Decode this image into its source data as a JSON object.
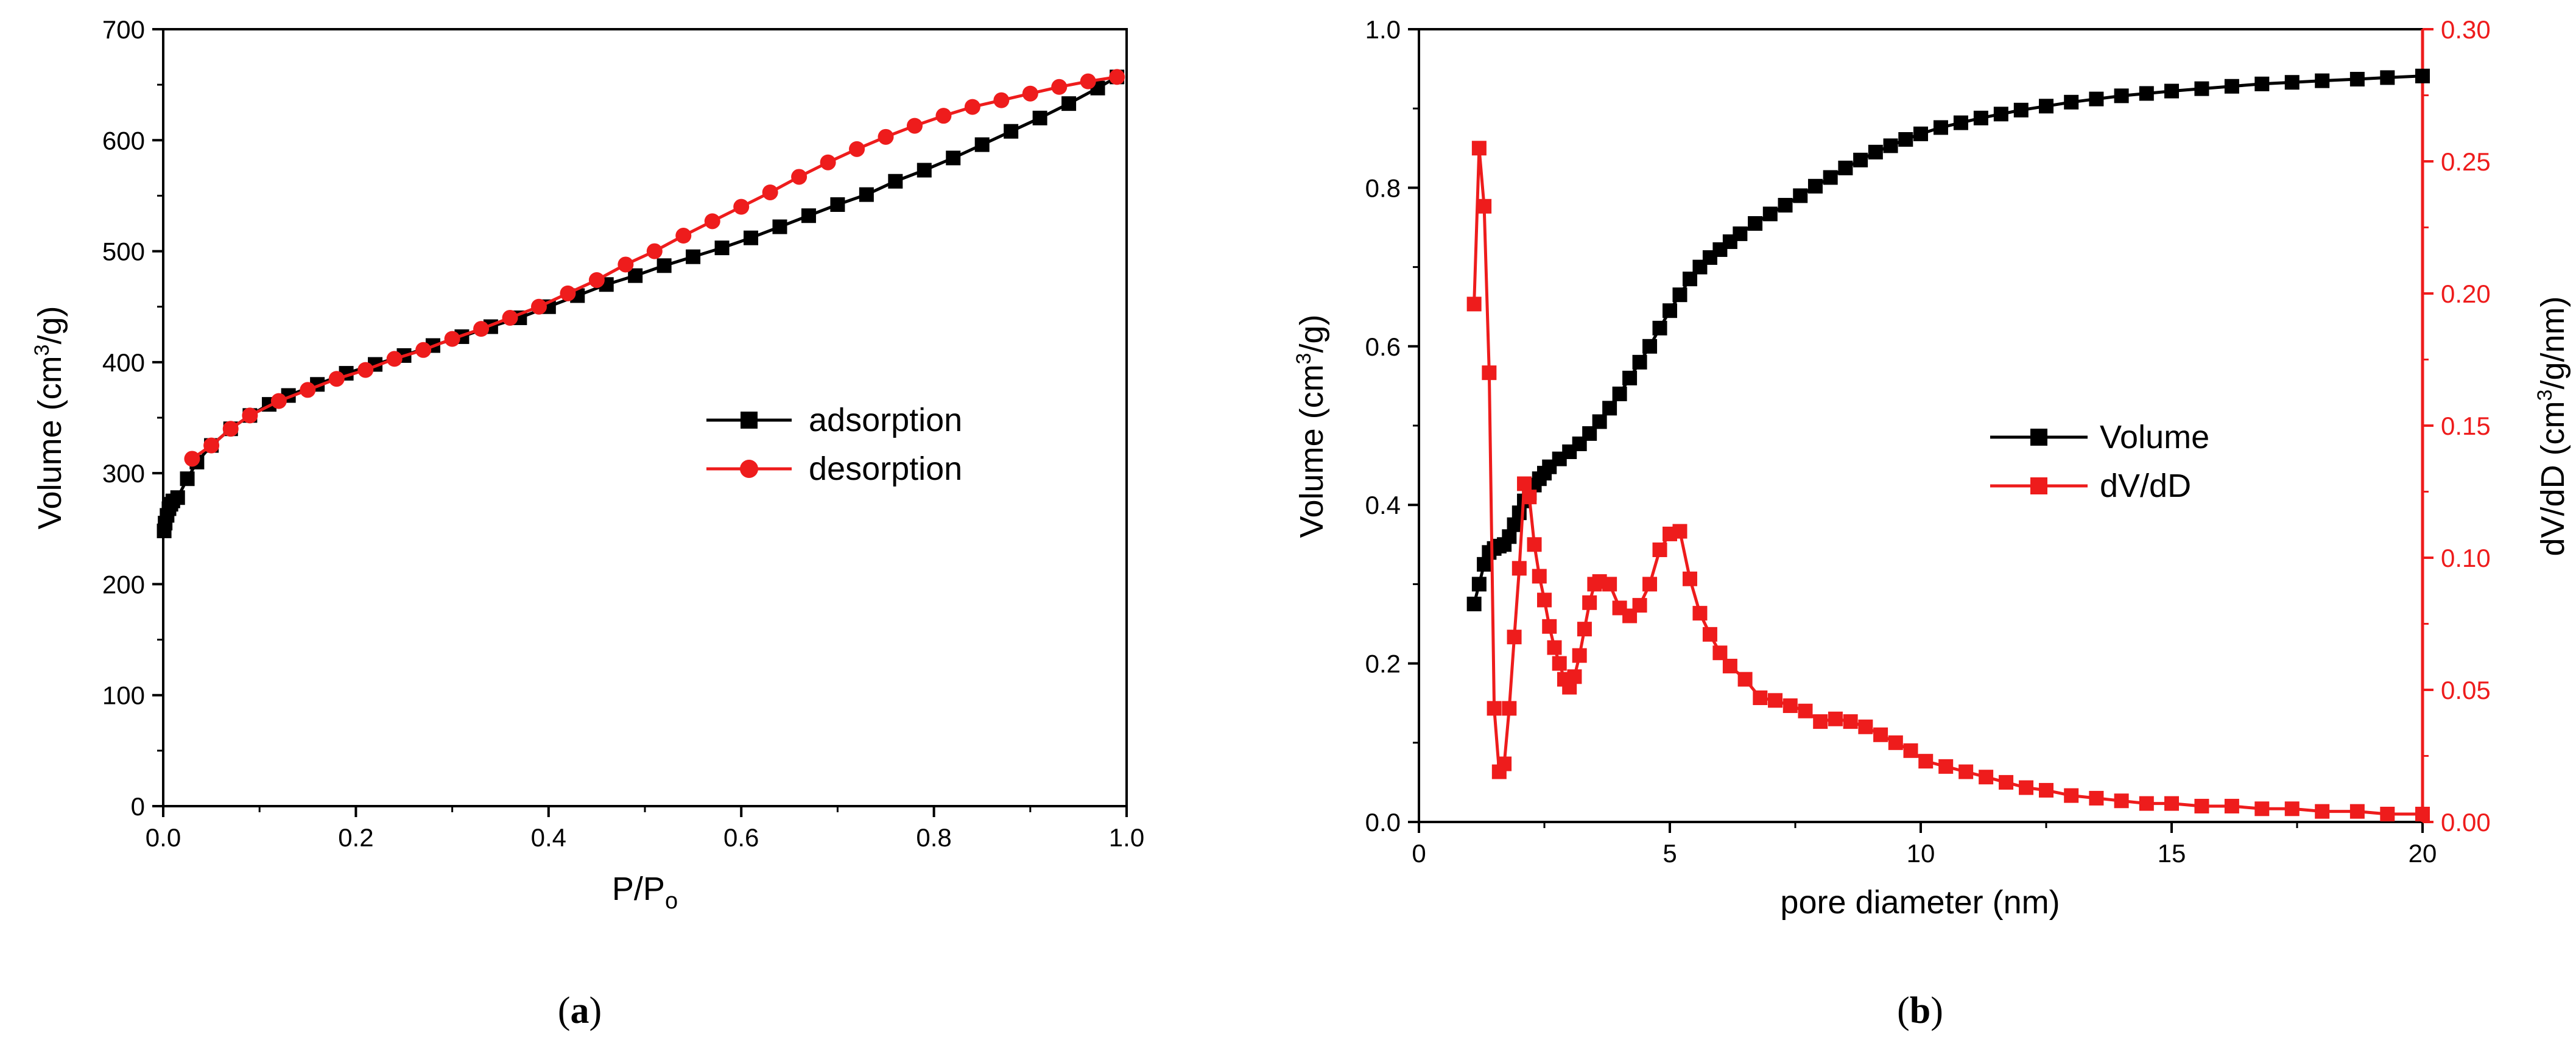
{
  "colors": {
    "black": "#000000",
    "red": "#ee1c1c"
  },
  "chart_data": [
    {
      "type": "line",
      "panel_label": "(a)",
      "panel_letter": "a",
      "xlabel": "P/P",
      "xlabel_sub": "o",
      "ylabel": "Volume (cm",
      "ylabel_sup": "3",
      "ylabel_tail": "/g)",
      "xlim": [
        0,
        1.0
      ],
      "ylim": [
        0,
        700
      ],
      "xticks": [
        "0.0",
        "0.2",
        "0.4",
        "0.6",
        "0.8",
        "1.0"
      ],
      "yticks": [
        "0",
        "100",
        "200",
        "300",
        "400",
        "500",
        "600",
        "700"
      ],
      "legend": [
        "adsorption",
        "desorption"
      ],
      "series": [
        {
          "name": "adsorption",
          "color": "#000000",
          "marker": "square",
          "x": [
            0.001,
            0.002,
            0.004,
            0.006,
            0.008,
            0.01,
            0.015,
            0.025,
            0.035,
            0.05,
            0.07,
            0.09,
            0.11,
            0.13,
            0.16,
            0.19,
            0.22,
            0.25,
            0.28,
            0.31,
            0.34,
            0.37,
            0.4,
            0.43,
            0.46,
            0.49,
            0.52,
            0.55,
            0.58,
            0.61,
            0.64,
            0.67,
            0.7,
            0.73,
            0.76,
            0.79,
            0.82,
            0.85,
            0.88,
            0.91,
            0.94,
            0.97,
            0.99
          ],
          "values": [
            248,
            255,
            262,
            268,
            272,
            275,
            278,
            295,
            310,
            325,
            340,
            352,
            362,
            370,
            380,
            390,
            398,
            406,
            415,
            423,
            432,
            440,
            450,
            460,
            470,
            478,
            487,
            495,
            503,
            512,
            522,
            532,
            542,
            551,
            563,
            573,
            584,
            596,
            608,
            620,
            633,
            647,
            657
          ]
        },
        {
          "name": "desorption",
          "color": "#ee1c1c",
          "marker": "circle",
          "x": [
            0.03,
            0.05,
            0.07,
            0.09,
            0.12,
            0.15,
            0.18,
            0.21,
            0.24,
            0.27,
            0.3,
            0.33,
            0.36,
            0.39,
            0.42,
            0.45,
            0.48,
            0.51,
            0.54,
            0.57,
            0.6,
            0.63,
            0.66,
            0.69,
            0.72,
            0.75,
            0.78,
            0.81,
            0.84,
            0.87,
            0.9,
            0.93,
            0.96,
            0.99
          ],
          "values": [
            313,
            325,
            340,
            352,
            365,
            375,
            385,
            393,
            403,
            411,
            421,
            430,
            440,
            450,
            462,
            474,
            488,
            500,
            514,
            527,
            540,
            553,
            567,
            580,
            592,
            603,
            613,
            622,
            630,
            636,
            642,
            648,
            653,
            657
          ]
        }
      ]
    },
    {
      "type": "line",
      "panel_label": "(b)",
      "panel_letter": "b",
      "xlabel": "pore diameter (nm)",
      "ylabel": "Volume (cm",
      "ylabel_sup": "3",
      "ylabel_tail": "/g)",
      "y2label": "dV/dD (cm",
      "y2label_sup": "3",
      "y2label_tail": "/g/nm)",
      "xlim": [
        0,
        20
      ],
      "ylim": [
        0,
        1.0
      ],
      "y2lim": [
        0,
        0.3
      ],
      "xticks": [
        "0",
        "5",
        "10",
        "15",
        "20"
      ],
      "yticks": [
        "0.0",
        "0.2",
        "0.4",
        "0.6",
        "0.8",
        "1.0"
      ],
      "y2ticks": [
        "0.00",
        "0.05",
        "0.10",
        "0.15",
        "0.20",
        "0.25",
        "0.30"
      ],
      "legend": [
        "Volume",
        "dV/dD"
      ],
      "series": [
        {
          "name": "Volume",
          "color": "#000000",
          "marker": "square",
          "axis": "left",
          "x": [
            1.1,
            1.2,
            1.3,
            1.4,
            1.5,
            1.6,
            1.7,
            1.8,
            1.9,
            2.0,
            2.1,
            2.2,
            2.3,
            2.4,
            2.5,
            2.6,
            2.8,
            3.0,
            3.2,
            3.4,
            3.6,
            3.8,
            4.0,
            4.2,
            4.4,
            4.6,
            4.8,
            5.0,
            5.2,
            5.4,
            5.6,
            5.8,
            6.0,
            6.2,
            6.4,
            6.7,
            7.0,
            7.3,
            7.6,
            7.9,
            8.2,
            8.5,
            8.8,
            9.1,
            9.4,
            9.7,
            10.0,
            10.4,
            10.8,
            11.2,
            11.6,
            12.0,
            12.5,
            13.0,
            13.5,
            14.0,
            14.5,
            15.0,
            15.6,
            16.2,
            16.8,
            17.4,
            18.0,
            18.7,
            19.3,
            20.0
          ],
          "values": [
            0.275,
            0.3,
            0.325,
            0.34,
            0.345,
            0.348,
            0.35,
            0.36,
            0.375,
            0.39,
            0.405,
            0.415,
            0.425,
            0.433,
            0.44,
            0.448,
            0.458,
            0.467,
            0.477,
            0.49,
            0.505,
            0.522,
            0.54,
            0.56,
            0.58,
            0.6,
            0.623,
            0.645,
            0.665,
            0.685,
            0.7,
            0.712,
            0.722,
            0.732,
            0.742,
            0.755,
            0.767,
            0.778,
            0.79,
            0.802,
            0.813,
            0.825,
            0.835,
            0.845,
            0.853,
            0.861,
            0.868,
            0.876,
            0.882,
            0.888,
            0.893,
            0.898,
            0.903,
            0.908,
            0.912,
            0.916,
            0.919,
            0.922,
            0.925,
            0.928,
            0.931,
            0.933,
            0.935,
            0.937,
            0.939,
            0.941
          ]
        },
        {
          "name": "dV/dD",
          "color": "#ee1c1c",
          "marker": "square",
          "axis": "right",
          "x": [
            1.1,
            1.2,
            1.3,
            1.4,
            1.5,
            1.6,
            1.7,
            1.8,
            1.9,
            2.0,
            2.1,
            2.2,
            2.3,
            2.4,
            2.5,
            2.6,
            2.7,
            2.8,
            2.9,
            3.0,
            3.1,
            3.2,
            3.3,
            3.4,
            3.5,
            3.6,
            3.8,
            4.0,
            4.2,
            4.4,
            4.6,
            4.8,
            5.0,
            5.2,
            5.4,
            5.6,
            5.8,
            6.0,
            6.2,
            6.5,
            6.8,
            7.1,
            7.4,
            7.7,
            8.0,
            8.3,
            8.6,
            8.9,
            9.2,
            9.5,
            9.8,
            10.1,
            10.5,
            10.9,
            11.3,
            11.7,
            12.1,
            12.5,
            13.0,
            13.5,
            14.0,
            14.5,
            15.0,
            15.6,
            16.2,
            16.8,
            17.4,
            18.0,
            18.7,
            19.3,
            20.0
          ],
          "values": [
            0.196,
            0.255,
            0.233,
            0.17,
            0.043,
            0.019,
            0.022,
            0.043,
            0.07,
            0.096,
            0.128,
            0.123,
            0.105,
            0.093,
            0.084,
            0.074,
            0.066,
            0.06,
            0.054,
            0.051,
            0.055,
            0.063,
            0.073,
            0.083,
            0.09,
            0.091,
            0.09,
            0.081,
            0.078,
            0.082,
            0.09,
            0.103,
            0.109,
            0.11,
            0.092,
            0.079,
            0.071,
            0.064,
            0.059,
            0.054,
            0.047,
            0.046,
            0.044,
            0.042,
            0.038,
            0.039,
            0.038,
            0.036,
            0.033,
            0.03,
            0.027,
            0.023,
            0.021,
            0.019,
            0.017,
            0.015,
            0.013,
            0.012,
            0.01,
            0.009,
            0.008,
            0.007,
            0.007,
            0.006,
            0.006,
            0.005,
            0.005,
            0.004,
            0.004,
            0.003,
            0.003
          ]
        }
      ]
    }
  ]
}
